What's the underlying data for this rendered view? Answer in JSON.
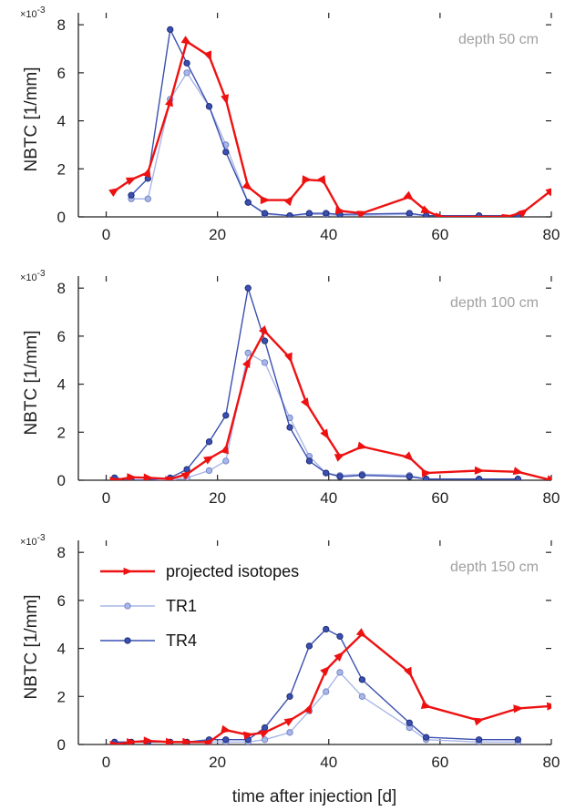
{
  "figure": {
    "xlabel": "time after injection [d]",
    "colors": {
      "projected": "#ee1111",
      "TR1": "#a9b6e8",
      "TR4": "#3a4fb0",
      "annotation": "#a0a0a0"
    }
  },
  "chart_data": [
    {
      "type": "line",
      "annotation": "depth 50 cm",
      "ylabel": "NBTC [1/mm]",
      "y_scale_label": "×10",
      "y_scale_exponent": "-3",
      "xlim": [
        -5,
        80
      ],
      "ylim": [
        0,
        0.0085
      ],
      "xticks": [
        0,
        20,
        40,
        60,
        80
      ],
      "yticks": [
        0,
        0.002,
        0.004,
        0.006,
        0.008
      ],
      "ytick_labels": [
        "0",
        "2",
        "4",
        "6",
        "8"
      ],
      "series": [
        {
          "name": "projected isotopes",
          "x": [
            1.5,
            4.5,
            7.5,
            11.5,
            14.5,
            18.5,
            21.5,
            25.5,
            28.5,
            33,
            36,
            39,
            42,
            46,
            54.5,
            57.5,
            60,
            72,
            75,
            80
          ],
          "y": [
            0.00108,
            0.00155,
            0.00185,
            0.0048,
            0.0073,
            0.0067,
            0.0049,
            0.00125,
            0.0007,
            0.0007,
            0.00155,
            0.0015,
            0.00025,
            0.00015,
            0.00083,
            0.00025,
            0.0,
            0.0,
            0.0002,
            0.0011
          ]
        },
        {
          "name": "TR1",
          "x": [
            4.5,
            7.5,
            11.5,
            14.5,
            18.5,
            21.5,
            25.5,
            28.5,
            33,
            36.5,
            39.5,
            42,
            54.5,
            57.5,
            67,
            74
          ],
          "y": [
            0.00075,
            0.00075,
            0.0049,
            0.006,
            0.0046,
            0.003,
            0.0006,
            0.0001,
            5e-05,
            0.0001,
            0.0001,
            5e-05,
            0.0001,
            5e-05,
            5e-05,
            5e-05
          ]
        },
        {
          "name": "TR4",
          "x": [
            4.5,
            7.5,
            11.5,
            14.5,
            18.5,
            21.5,
            25.5,
            28.5,
            33,
            36.5,
            39.5,
            42,
            54.5,
            57.5,
            67,
            74
          ],
          "y": [
            0.0009,
            0.0016,
            0.0078,
            0.0064,
            0.0046,
            0.0027,
            0.0006,
            0.00015,
            5e-05,
            0.00015,
            0.00015,
            0.0001,
            0.00015,
            5e-05,
            5e-05,
            5e-05
          ]
        }
      ]
    },
    {
      "type": "line",
      "annotation": "depth 100 cm",
      "ylabel": "NBTC [1/mm]",
      "y_scale_label": "×10",
      "y_scale_exponent": "-3",
      "xlim": [
        -5,
        80
      ],
      "ylim": [
        0,
        0.0085
      ],
      "xticks": [
        0,
        20,
        40,
        60,
        80
      ],
      "yticks": [
        0,
        0.002,
        0.004,
        0.006,
        0.008
      ],
      "ytick_labels": [
        "0",
        "2",
        "4",
        "6",
        "8"
      ],
      "series": [
        {
          "name": "projected isotopes",
          "x": [
            1.5,
            4.5,
            7.5,
            11.5,
            14.5,
            18.5,
            21.5,
            25.5,
            28.5,
            33,
            36,
            39.5,
            42,
            46,
            54.5,
            57.5,
            67,
            74,
            80
          ],
          "y": [
            0.0,
            0.00012,
            0.0001,
            5e-05,
            0.00025,
            0.0009,
            0.0013,
            0.0049,
            0.0062,
            0.0051,
            0.0032,
            0.0019,
            0.001,
            0.0014,
            0.00095,
            0.0003,
            0.0004,
            0.00035,
            0.0
          ]
        },
        {
          "name": "TR1",
          "x": [
            1.5,
            4.5,
            7.5,
            11.5,
            14.5,
            18.5,
            21.5,
            25.5,
            28.5,
            33,
            36.5,
            39.5,
            42,
            46,
            54.5,
            57.5,
            67,
            74
          ],
          "y": [
            0.0001,
            0.0,
            0.0,
            0.0,
            0.0001,
            0.0004,
            0.0008,
            0.0053,
            0.0049,
            0.0026,
            0.001,
            0.0003,
            0.0002,
            0.00025,
            0.0002,
            5e-05,
            5e-05,
            5e-05
          ]
        },
        {
          "name": "TR4",
          "x": [
            1.5,
            4.5,
            7.5,
            11.5,
            14.5,
            18.5,
            21.5,
            25.5,
            28.5,
            33,
            36.5,
            39.5,
            42,
            46,
            54.5,
            57.5,
            67,
            74
          ],
          "y": [
            0.0001,
            0.0,
            0.0,
            0.0001,
            0.00045,
            0.0016,
            0.0027,
            0.008,
            0.0058,
            0.0022,
            0.0008,
            0.0003,
            0.00015,
            0.0002,
            0.00015,
            5e-05,
            5e-05,
            5e-05
          ]
        }
      ]
    },
    {
      "type": "line",
      "annotation": "depth 150 cm",
      "ylabel": "NBTC [1/mm]",
      "y_scale_label": "×10",
      "y_scale_exponent": "-3",
      "xlim": [
        -5,
        80
      ],
      "ylim": [
        0,
        0.0085
      ],
      "xticks": [
        0,
        20,
        40,
        60,
        80
      ],
      "yticks": [
        0,
        0.002,
        0.004,
        0.006,
        0.008
      ],
      "ytick_labels": [
        "0",
        "2",
        "4",
        "6",
        "8"
      ],
      "legend": "top-left",
      "series": [
        {
          "name": "projected isotopes",
          "x": [
            1.5,
            4.5,
            7.5,
            11.5,
            14.5,
            18.5,
            21.5,
            25.5,
            28.5,
            33,
            36.5,
            39.5,
            42,
            46,
            54.5,
            57.5,
            67,
            74,
            80
          ],
          "y": [
            0.0,
            0.0001,
            0.00015,
            0.0001,
            0.0001,
            0.0001,
            0.0006,
            0.0004,
            0.0005,
            0.001,
            0.0015,
            0.0031,
            0.0037,
            0.0046,
            0.003,
            0.0016,
            0.001,
            0.0015,
            0.0016
          ]
        },
        {
          "name": "TR1",
          "x": [
            1.5,
            4.5,
            7.5,
            11.5,
            14.5,
            18.5,
            21.5,
            25.5,
            28.5,
            33,
            36.5,
            39.5,
            42,
            46,
            54.5,
            57.5,
            67,
            74
          ],
          "y": [
            0.0001,
            0.0001,
            0.0001,
            0.0001,
            0.0001,
            0.0001,
            0.0001,
            0.0001,
            0.0002,
            0.0005,
            0.0014,
            0.0022,
            0.003,
            0.002,
            0.0007,
            0.0002,
            0.0001,
            0.0001
          ]
        },
        {
          "name": "TR4",
          "x": [
            1.5,
            4.5,
            7.5,
            11.5,
            14.5,
            18.5,
            21.5,
            25.5,
            28.5,
            33,
            36.5,
            39.5,
            42,
            46,
            54.5,
            57.5,
            67,
            74
          ],
          "y": [
            0.0001,
            0.0001,
            0.0001,
            0.0001,
            0.0001,
            0.0002,
            0.0002,
            0.0002,
            0.0007,
            0.002,
            0.0041,
            0.0048,
            0.0045,
            0.0027,
            0.0009,
            0.0003,
            0.0002,
            0.0002
          ]
        }
      ]
    }
  ]
}
